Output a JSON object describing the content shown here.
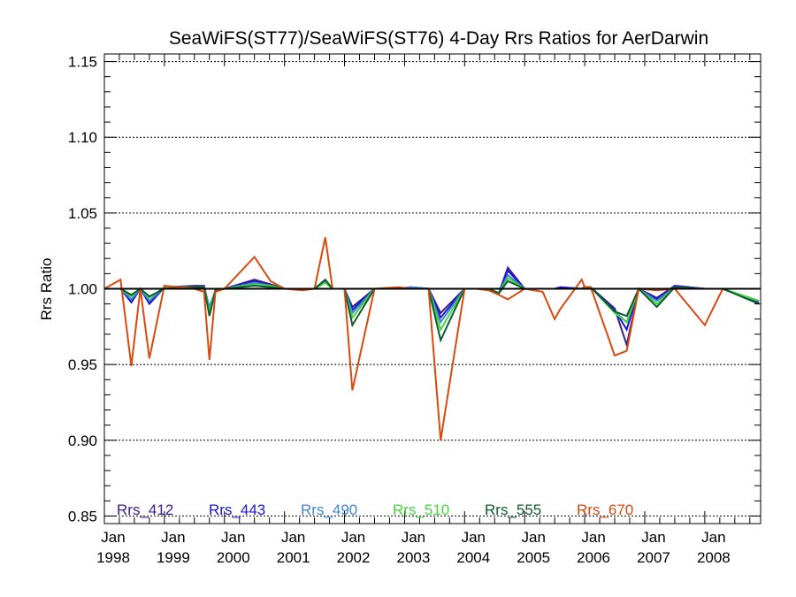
{
  "chart_data": {
    "type": "line",
    "title": "SeaWiFS(ST77)/SeaWiFS(ST76) 4-Day Rrs Ratios for AerDarwin",
    "xlabel": "",
    "ylabel": "Rrs Ratio",
    "xlim": [
      1998.0,
      2008.93
    ],
    "ylim": [
      0.845,
      1.155
    ],
    "yticks": [
      {
        "value": 0.85,
        "label": "0.85"
      },
      {
        "value": 0.9,
        "label": "0.90"
      },
      {
        "value": 0.95,
        "label": "0.95"
      },
      {
        "value": 1.0,
        "label": "1.00"
      },
      {
        "value": 1.05,
        "label": "1.05"
      },
      {
        "value": 1.1,
        "label": "1.10"
      },
      {
        "value": 1.15,
        "label": "1.15"
      }
    ],
    "xticks": [
      {
        "value": 1998,
        "month": "Jan",
        "year": "1998"
      },
      {
        "value": 1999,
        "month": "Jan",
        "year": "1999"
      },
      {
        "value": 2000,
        "month": "Jan",
        "year": "2000"
      },
      {
        "value": 2001,
        "month": "Jan",
        "year": "2001"
      },
      {
        "value": 2002,
        "month": "Jan",
        "year": "2002"
      },
      {
        "value": 2003,
        "month": "Jan",
        "year": "2003"
      },
      {
        "value": 2004,
        "month": "Jan",
        "year": "2004"
      },
      {
        "value": 2005,
        "month": "Jan",
        "year": "2005"
      },
      {
        "value": 2006,
        "month": "Jan",
        "year": "2006"
      },
      {
        "value": 2007,
        "month": "Jan",
        "year": "2007"
      },
      {
        "value": 2008,
        "month": "Jan",
        "year": "2008"
      }
    ],
    "grid": "dotted horizontal at major y ticks",
    "reference_line": 1.0,
    "x": [
      1998.0,
      1998.27,
      1998.45,
      1998.6,
      1998.75,
      1999.0,
      1999.5,
      1999.66,
      1999.75,
      1999.85,
      2000.0,
      2000.5,
      2000.77,
      2001.0,
      2001.3,
      2001.5,
      2001.68,
      2001.8,
      2002.0,
      2002.13,
      2002.5,
      2002.9,
      2003.1,
      2003.4,
      2003.6,
      2004.0,
      2004.2,
      2004.4,
      2004.57,
      2004.72,
      2005.0,
      2005.3,
      2005.5,
      2005.6,
      2005.95,
      2006.0,
      2006.1,
      2006.5,
      2006.7,
      2006.9,
      2007.2,
      2007.5,
      2008.0,
      2008.3,
      2008.9
    ],
    "legend_placement": "bottom, horizontal inside plot",
    "series": [
      {
        "name": "Rrs_412",
        "color": "#3d1d8a",
        "values": [
          1.0,
          1.0,
          0.992,
          1.0,
          0.991,
          1.001,
          1.002,
          1.002,
          0.987,
          0.999,
          1.0,
          1.006,
          1.003,
          1.0,
          1.0,
          1.0,
          1.005,
          1.0,
          1.0,
          0.988,
          1.0,
          1.0,
          1.001,
          1.0,
          0.984,
          1.0,
          1.0,
          1.0,
          0.997,
          1.014,
          1.0,
          1.0,
          1.0,
          1.001,
          1.0,
          1.001,
          1.001,
          0.987,
          0.963,
          1.0,
          0.994,
          1.002,
          1.0,
          1.0,
          0.991
        ]
      },
      {
        "name": "Rrs_443",
        "color": "#1b18d6",
        "values": [
          1.0,
          1.0,
          0.991,
          1.0,
          0.99,
          1.001,
          1.001,
          1.001,
          0.986,
          0.999,
          1.0,
          1.005,
          1.002,
          1.0,
          1.0,
          1.0,
          1.005,
          1.0,
          1.0,
          0.986,
          1.0,
          1.0,
          1.001,
          1.0,
          0.981,
          1.0,
          1.0,
          1.0,
          0.997,
          1.012,
          1.0,
          1.0,
          1.0,
          1.001,
          1.0,
          1.001,
          1.001,
          0.986,
          0.973,
          1.0,
          0.993,
          1.002,
          1.0,
          1.0,
          0.991
        ]
      },
      {
        "name": "Rrs_490",
        "color": "#3f86d8",
        "values": [
          1.0,
          1.0,
          0.993,
          1.0,
          0.992,
          1.001,
          1.001,
          1.001,
          0.988,
          0.999,
          1.0,
          1.004,
          1.002,
          1.0,
          1.0,
          1.0,
          1.004,
          1.0,
          1.0,
          0.984,
          1.0,
          1.0,
          1.001,
          1.0,
          0.978,
          1.0,
          1.0,
          1.0,
          0.997,
          1.009,
          1.0,
          1.0,
          1.0,
          1.0,
          1.0,
          1.001,
          1.001,
          0.985,
          0.978,
          1.0,
          0.992,
          1.001,
          1.0,
          1.0,
          0.992
        ]
      },
      {
        "name": "Rrs_510",
        "color": "#45d63b",
        "values": [
          1.0,
          1.0,
          0.995,
          1.0,
          0.994,
          1.001,
          1.001,
          1.001,
          0.985,
          0.999,
          1.0,
          1.003,
          1.002,
          1.0,
          1.0,
          1.0,
          1.004,
          1.0,
          1.0,
          0.981,
          1.0,
          1.0,
          1.0,
          1.0,
          0.973,
          1.0,
          1.0,
          1.0,
          0.997,
          1.007,
          1.0,
          1.0,
          1.0,
          1.0,
          1.0,
          1.001,
          1.001,
          0.984,
          0.978,
          1.0,
          0.99,
          1.001,
          1.0,
          1.0,
          0.992
        ]
      },
      {
        "name": "Rrs_555",
        "color": "#0d5c2e",
        "values": [
          1.0,
          1.0,
          0.996,
          1.0,
          0.995,
          1.0,
          1.001,
          1.001,
          0.982,
          0.999,
          1.0,
          1.002,
          1.001,
          1.0,
          1.0,
          1.0,
          1.006,
          1.0,
          1.0,
          0.976,
          1.0,
          1.0,
          1.0,
          1.0,
          0.966,
          1.0,
          1.0,
          1.0,
          0.997,
          1.005,
          1.0,
          1.0,
          1.0,
          1.0,
          1.0,
          1.001,
          1.001,
          0.985,
          0.982,
          1.0,
          0.988,
          1.001,
          1.0,
          1.0,
          0.99
        ]
      },
      {
        "name": "Rrs_670",
        "color": "#d94a0e",
        "values": [
          1.0,
          1.006,
          0.949,
          1.0,
          0.954,
          1.002,
          1.0,
          0.998,
          0.953,
          0.998,
          1.0,
          1.021,
          1.005,
          1.0,
          0.999,
          1.0,
          1.034,
          1.0,
          1.0,
          0.933,
          1.0,
          1.001,
          1.0,
          1.0,
          0.9,
          1.0,
          1.0,
          0.999,
          0.996,
          0.993,
          1.0,
          0.998,
          0.98,
          0.987,
          1.006,
          1.001,
          1.001,
          0.956,
          0.959,
          1.0,
          0.999,
          1.0,
          0.976,
          1.0,
          1.0
        ]
      }
    ]
  }
}
